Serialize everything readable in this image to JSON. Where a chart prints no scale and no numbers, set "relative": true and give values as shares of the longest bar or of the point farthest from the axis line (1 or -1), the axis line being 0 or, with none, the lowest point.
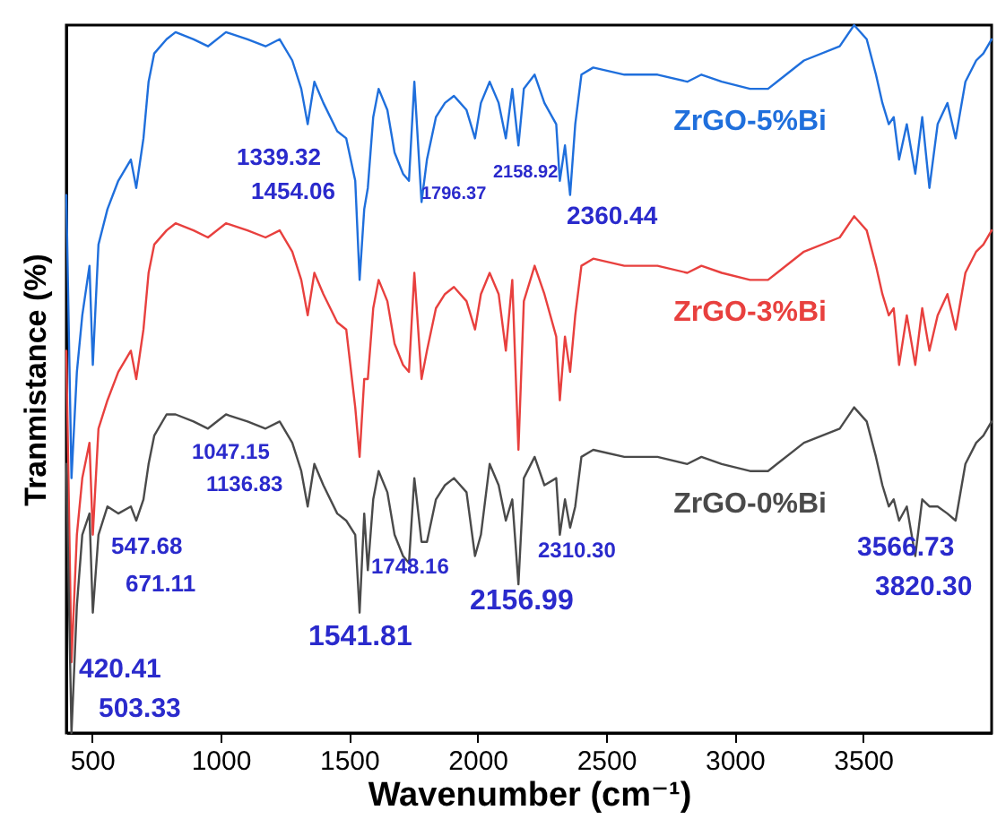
{
  "chart_data": {
    "type": "line",
    "relative": true,
    "xlabel": "Wavenumber (cm⁻¹)",
    "ylabel": "Tranmistance (%)",
    "xlim": [
      400,
      4000
    ],
    "xticks": [
      500,
      1000,
      1500,
      2000,
      2500,
      3000,
      3500
    ],
    "x": [
      400,
      420,
      441,
      462,
      490,
      503,
      525,
      560,
      602,
      651,
      672,
      700,
      720,
      742,
      790,
      825,
      895,
      951,
      1021,
      1105,
      1175,
      1230,
      1279,
      1314,
      1339,
      1365,
      1400,
      1454,
      1489,
      1524,
      1541,
      1559,
      1573,
      1594,
      1615,
      1649,
      1677,
      1710,
      1733,
      1754,
      1782,
      1803,
      1838,
      1873,
      1908,
      1957,
      1990,
      2013,
      2047,
      2082,
      2110,
      2135,
      2159,
      2180,
      2222,
      2260,
      2306,
      2320,
      2340,
      2360,
      2380,
      2404,
      2450,
      2571,
      2700,
      2816,
      2871,
      2950,
      3060,
      3130,
      3165,
      3270,
      3409,
      3465,
      3514,
      3550,
      3575,
      3600,
      3619,
      3640,
      3670,
      3703,
      3730,
      3758,
      3790,
      3828,
      3860,
      3898,
      3940,
      3968,
      4000
    ],
    "series": [
      {
        "name": "ZrGO-5%Bi",
        "color": "#1f6fdc",
        "values": [
          0.76,
          0.36,
          0.51,
          0.59,
          0.66,
          0.52,
          0.69,
          0.74,
          0.78,
          0.81,
          0.77,
          0.84,
          0.92,
          0.96,
          0.98,
          0.99,
          0.98,
          0.97,
          0.99,
          0.98,
          0.97,
          0.98,
          0.95,
          0.91,
          0.86,
          0.92,
          0.89,
          0.85,
          0.84,
          0.78,
          0.64,
          0.74,
          0.77,
          0.87,
          0.91,
          0.88,
          0.82,
          0.79,
          0.78,
          0.92,
          0.75,
          0.81,
          0.87,
          0.89,
          0.9,
          0.88,
          0.84,
          0.89,
          0.92,
          0.89,
          0.84,
          0.91,
          0.83,
          0.91,
          0.93,
          0.89,
          0.86,
          0.78,
          0.83,
          0.76,
          0.86,
          0.93,
          0.94,
          0.93,
          0.93,
          0.92,
          0.93,
          0.92,
          0.91,
          0.91,
          0.92,
          0.95,
          0.97,
          1.0,
          0.98,
          0.93,
          0.89,
          0.86,
          0.87,
          0.81,
          0.86,
          0.79,
          0.87,
          0.77,
          0.86,
          0.89,
          0.84,
          0.92,
          0.95,
          0.96,
          0.98
        ]
      },
      {
        "name": "ZrGO-3%Bi",
        "color": "#e8403e",
        "values": [
          0.54,
          0.1,
          0.28,
          0.36,
          0.41,
          0.28,
          0.43,
          0.47,
          0.51,
          0.54,
          0.5,
          0.57,
          0.65,
          0.69,
          0.71,
          0.72,
          0.71,
          0.7,
          0.72,
          0.71,
          0.7,
          0.71,
          0.68,
          0.64,
          0.59,
          0.65,
          0.62,
          0.58,
          0.57,
          0.46,
          0.39,
          0.5,
          0.5,
          0.6,
          0.64,
          0.61,
          0.55,
          0.52,
          0.51,
          0.65,
          0.5,
          0.54,
          0.6,
          0.62,
          0.63,
          0.61,
          0.57,
          0.62,
          0.65,
          0.62,
          0.54,
          0.64,
          0.4,
          0.61,
          0.66,
          0.62,
          0.56,
          0.47,
          0.56,
          0.51,
          0.59,
          0.66,
          0.67,
          0.66,
          0.66,
          0.65,
          0.66,
          0.65,
          0.64,
          0.64,
          0.65,
          0.68,
          0.7,
          0.73,
          0.71,
          0.66,
          0.62,
          0.59,
          0.6,
          0.52,
          0.59,
          0.52,
          0.6,
          0.54,
          0.59,
          0.62,
          0.57,
          0.65,
          0.68,
          0.69,
          0.71
        ]
      },
      {
        "name": "ZrGO-0%Bi",
        "color": "#4a4a4a",
        "values": [
          0.38,
          0.0,
          0.18,
          0.28,
          0.31,
          0.17,
          0.28,
          0.32,
          0.31,
          0.32,
          0.3,
          0.33,
          0.38,
          0.42,
          0.45,
          0.45,
          0.44,
          0.43,
          0.45,
          0.44,
          0.43,
          0.44,
          0.41,
          0.37,
          0.32,
          0.38,
          0.35,
          0.31,
          0.3,
          0.28,
          0.17,
          0.31,
          0.23,
          0.33,
          0.37,
          0.34,
          0.28,
          0.25,
          0.24,
          0.36,
          0.27,
          0.27,
          0.33,
          0.35,
          0.36,
          0.34,
          0.25,
          0.28,
          0.38,
          0.35,
          0.3,
          0.33,
          0.21,
          0.36,
          0.39,
          0.35,
          0.36,
          0.28,
          0.33,
          0.29,
          0.32,
          0.39,
          0.4,
          0.39,
          0.39,
          0.38,
          0.39,
          0.38,
          0.37,
          0.37,
          0.38,
          0.41,
          0.43,
          0.46,
          0.44,
          0.39,
          0.35,
          0.32,
          0.33,
          0.3,
          0.32,
          0.25,
          0.33,
          0.32,
          0.32,
          0.31,
          0.3,
          0.38,
          0.41,
          0.42,
          0.44
        ]
      }
    ],
    "annotations": [
      "1339.32",
      "1454.06",
      "1796.37",
      "2158.92",
      "2360.44",
      "1047.15",
      "1136.83",
      "547.68",
      "671.11",
      "1748.16",
      "2156.99",
      "2310.30",
      "1541.81",
      "420.41",
      "503.33",
      "3566.73",
      "3820.30"
    ]
  }
}
